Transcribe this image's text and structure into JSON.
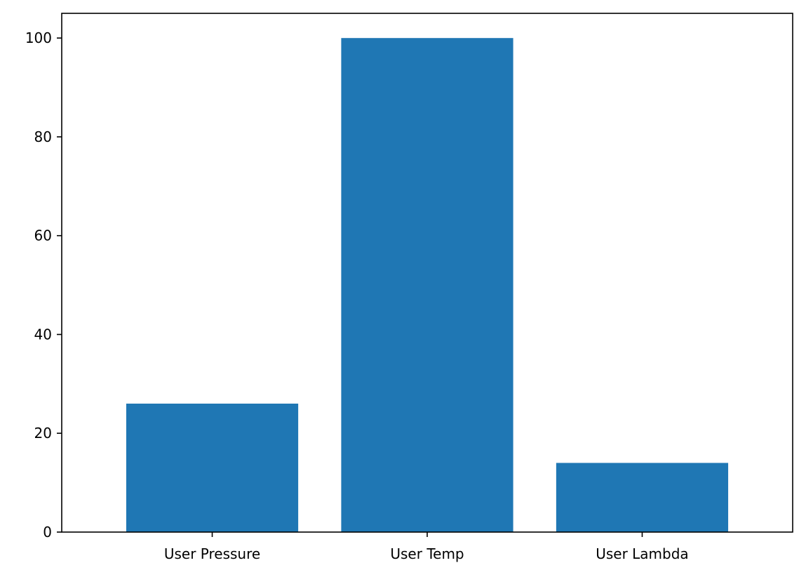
{
  "chart_data": {
    "type": "bar",
    "title": "",
    "xlabel": "",
    "ylabel": "",
    "categories": [
      "User Pressure",
      "User Temp",
      "User Lambda"
    ],
    "values": [
      26,
      100,
      14
    ],
    "ylim": [
      0,
      105
    ],
    "yticks": [
      "0",
      "20",
      "40",
      "60",
      "80",
      "100"
    ],
    "grid": false,
    "legend": "none",
    "bar_color": "#1f77b4"
  }
}
